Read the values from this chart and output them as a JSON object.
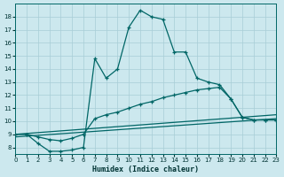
{
  "background_color": "#cce8ee",
  "grid_color": "#a8cdd6",
  "line_color": "#006666",
  "xlabel": "Humidex (Indice chaleur)",
  "xlim": [
    0,
    23
  ],
  "ylim": [
    7.5,
    19.0
  ],
  "xticks": [
    0,
    1,
    2,
    3,
    4,
    5,
    6,
    7,
    8,
    9,
    10,
    11,
    12,
    13,
    14,
    15,
    16,
    17,
    18,
    19,
    20,
    21,
    22,
    23
  ],
  "yticks": [
    8,
    9,
    10,
    11,
    12,
    13,
    14,
    15,
    16,
    17,
    18
  ],
  "curve1_x": [
    0,
    1,
    2,
    3,
    4,
    5,
    6,
    7,
    8,
    9,
    10,
    11,
    12,
    13,
    14,
    15,
    16,
    17,
    18,
    19,
    20,
    21,
    22,
    23
  ],
  "curve1_y": [
    9.0,
    9.0,
    8.3,
    7.7,
    7.7,
    7.8,
    8.0,
    14.8,
    13.3,
    14.0,
    17.2,
    18.5,
    18.0,
    17.8,
    15.3,
    15.3,
    13.3,
    13.0,
    12.8,
    11.7,
    10.3,
    10.1,
    10.1,
    10.1
  ],
  "curve2_x": [
    0,
    1,
    2,
    3,
    4,
    5,
    6,
    7,
    8,
    9,
    10,
    11,
    12,
    13,
    14,
    15,
    16,
    17,
    18,
    19,
    20,
    21,
    22,
    23
  ],
  "curve2_y": [
    9.0,
    9.0,
    8.8,
    8.6,
    8.5,
    8.7,
    9.0,
    10.2,
    10.5,
    10.7,
    11.0,
    11.3,
    11.5,
    11.8,
    12.0,
    12.2,
    12.4,
    12.5,
    12.6,
    11.7,
    10.3,
    10.1,
    10.1,
    10.1
  ],
  "line3_x": [
    0,
    23
  ],
  "line3_y": [
    9.0,
    10.5
  ],
  "line4_x": [
    0,
    23
  ],
  "line4_y": [
    8.8,
    10.2
  ]
}
